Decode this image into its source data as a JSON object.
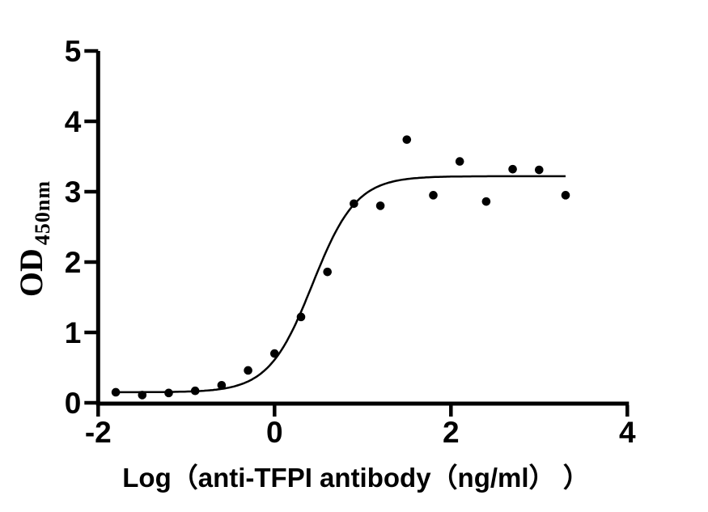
{
  "figure": {
    "background_color": "#ffffff",
    "axis_color": "#000000",
    "point_color": "#000000",
    "curve_color": "#000000"
  },
  "chart_data": {
    "type": "scatter",
    "title": "",
    "xlabel": "Log（anti-TFPI antibody（ng/ml） ）",
    "ylabel_main": "OD",
    "ylabel_sub": "450nm",
    "xlim": [
      -2,
      4
    ],
    "ylim": [
      0,
      5
    ],
    "x_ticks": [
      "-2",
      "0",
      "2",
      "4"
    ],
    "x_tick_values": [
      -2,
      0,
      2,
      4
    ],
    "y_ticks": [
      "0",
      "1",
      "2",
      "3",
      "4",
      "5"
    ],
    "y_tick_values": [
      0,
      1,
      2,
      3,
      4,
      5
    ],
    "grid": false,
    "legend": null,
    "points": {
      "x": [
        -1.8,
        -1.5,
        -1.2,
        -0.9,
        -0.6,
        -0.3,
        0.0,
        0.3,
        0.6,
        0.9,
        1.2,
        1.5,
        1.8,
        2.1,
        2.4,
        2.7,
        3.0,
        3.3
      ],
      "y": [
        0.15,
        0.11,
        0.14,
        0.17,
        0.25,
        0.46,
        0.7,
        1.22,
        1.86,
        2.83,
        2.8,
        3.74,
        2.95,
        3.43,
        2.86,
        3.32,
        3.31,
        2.95
      ]
    },
    "fit_curve": {
      "model": "4PL sigmoid",
      "bottom": 0.15,
      "top": 3.22,
      "logEC50": 0.43,
      "hillslope": 1.75,
      "x_start": -1.82,
      "x_end": 3.31
    }
  }
}
